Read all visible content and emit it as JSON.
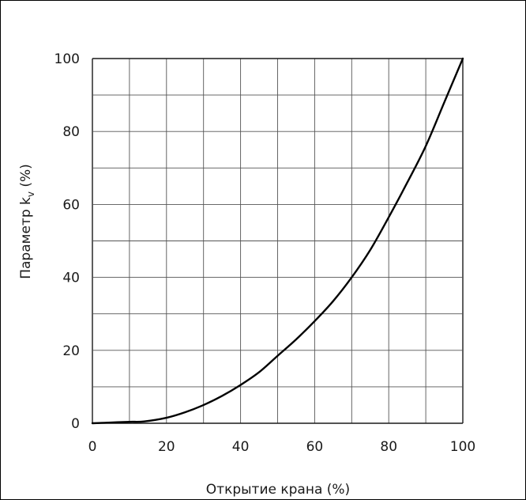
{
  "chart_data": {
    "type": "line",
    "xlabel": "Открытие крана (%)",
    "ylabel": "Параметр k",
    "ylabel_subscript": "v",
    "ylabel_suffix": " (%)",
    "xlim": [
      0,
      100
    ],
    "ylim": [
      0,
      100
    ],
    "x_ticks": [
      "0",
      "20",
      "40",
      "60",
      "80",
      "100"
    ],
    "y_ticks": [
      "0",
      "20",
      "40",
      "60",
      "80",
      "100"
    ],
    "grid": true,
    "grid_step_x": 10,
    "grid_step_y": 10,
    "series": [
      {
        "color": "#000000",
        "x": [
          0,
          5,
          10,
          14,
          20,
          25,
          30,
          35,
          40,
          45,
          50,
          55,
          60,
          65,
          70,
          75,
          80,
          85,
          90,
          95,
          100
        ],
        "y": [
          0,
          0.2,
          0.4,
          0.5,
          1.5,
          3,
          5,
          7.5,
          10.5,
          14,
          18.5,
          23,
          28,
          33.5,
          40,
          47.5,
          56.5,
          66,
          76,
          88,
          100
        ]
      }
    ]
  }
}
